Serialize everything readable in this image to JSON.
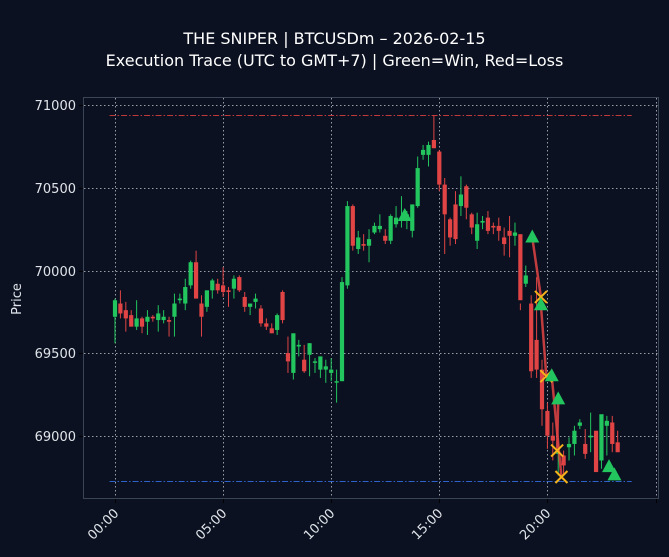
{
  "title": {
    "line1": "THE SNIPER | BTCUSDm – 2026-02-15",
    "line2": "Execution Trace (UTC to GMT+7) | Green=Win, Red=Loss"
  },
  "colors": {
    "background": "#0b1120",
    "up": "#22c55e",
    "down": "#e04444",
    "grid": "#c8ccd4",
    "frame": "#3a4656",
    "tp_line": "#c0393b",
    "sl_line": "#2f62c8",
    "exit_marker": "#f5b21a",
    "entry_marker": "#22c55e",
    "trade_line": "#e04444"
  },
  "chart_data": {
    "type": "candlestick",
    "title": "THE SNIPER | BTCUSDm – 2026-02-15 / Execution Trace (UTC to GMT+7) | Green=Win, Red=Loss",
    "xlabel": "",
    "ylabel": "Price",
    "x_ticks": [
      "00:00",
      "05:00",
      "10:00",
      "15:00",
      "20:00"
    ],
    "y_ticks": [
      69000,
      69500,
      70000,
      70500,
      71000
    ],
    "ylim": [
      68640,
      71050
    ],
    "xlim_hours": [
      -1.5,
      25.2
    ],
    "grid": true,
    "candle_interval_minutes": 15,
    "horizontal_lines": [
      {
        "name": "upper-level",
        "price": 70940,
        "style": "dashdot",
        "color": "#c0393b"
      },
      {
        "name": "lower-level",
        "price": 68725,
        "style": "dashdot",
        "color": "#2f62c8"
      }
    ],
    "candles": [
      [
        69720,
        69830,
        69560,
        69820
      ],
      [
        69800,
        69880,
        69710,
        69740
      ],
      [
        69760,
        69810,
        69630,
        69710
      ],
      [
        69730,
        69760,
        69670,
        69660
      ],
      [
        69660,
        69820,
        69640,
        69710
      ],
      [
        69710,
        69720,
        69620,
        69660
      ],
      [
        69690,
        69760,
        69610,
        69720
      ],
      [
        69720,
        69730,
        69690,
        69710
      ],
      [
        69700,
        69790,
        69630,
        69740
      ],
      [
        69700,
        69760,
        69680,
        69720
      ],
      [
        69700,
        69720,
        69600,
        69690
      ],
      [
        69720,
        69860,
        69600,
        69800
      ],
      [
        69820,
        69860,
        69800,
        69830
      ],
      [
        69800,
        69950,
        69760,
        69900
      ],
      [
        69910,
        70060,
        69890,
        70050
      ],
      [
        70050,
        70120,
        69920,
        69830
      ],
      [
        69800,
        69850,
        69600,
        69720
      ],
      [
        69780,
        69860,
        69750,
        69880
      ],
      [
        69880,
        69950,
        69830,
        69940
      ],
      [
        69920,
        69950,
        69860,
        69880
      ],
      [
        69910,
        70020,
        69840,
        69870
      ],
      [
        69880,
        69900,
        69780,
        69870
      ],
      [
        69890,
        69970,
        69830,
        69950
      ],
      [
        69960,
        69970,
        69870,
        69880
      ],
      [
        69840,
        69870,
        69750,
        69780
      ],
      [
        69780,
        69790,
        69730,
        69800
      ],
      [
        69810,
        69860,
        69770,
        69830
      ],
      [
        69770,
        69790,
        69660,
        69680
      ],
      [
        69680,
        69710,
        69640,
        69660
      ],
      [
        69650,
        69680,
        69620,
        69620
      ],
      [
        69640,
        69740,
        69610,
        69730
      ],
      [
        69870,
        69880,
        69680,
        69700
      ],
      [
        69500,
        69600,
        69380,
        69450
      ],
      [
        69380,
        69600,
        69340,
        69620
      ],
      [
        69540,
        69580,
        69480,
        69550
      ],
      [
        69460,
        69550,
        69380,
        69390
      ],
      [
        69490,
        69560,
        69360,
        69560
      ],
      [
        69450,
        69470,
        69380,
        69450
      ],
      [
        69400,
        69480,
        69350,
        69480
      ],
      [
        69400,
        69460,
        69320,
        69420
      ],
      [
        69380,
        69470,
        69330,
        69400
      ],
      [
        69330,
        69400,
        69200,
        69330
      ],
      [
        69330,
        69960,
        69330,
        69930
      ],
      [
        69910,
        70420,
        69890,
        70390
      ],
      [
        70390,
        70400,
        70120,
        70150
      ],
      [
        70130,
        70240,
        70100,
        70200
      ],
      [
        70160,
        70220,
        70120,
        70150
      ],
      [
        70150,
        70250,
        70050,
        70190
      ],
      [
        70230,
        70290,
        70220,
        70270
      ],
      [
        70250,
        70340,
        70230,
        70270
      ],
      [
        70210,
        70250,
        70160,
        70180
      ],
      [
        70180,
        70340,
        70160,
        70330
      ],
      [
        70280,
        70390,
        70260,
        70320
      ],
      [
        70320,
        70450,
        70260,
        70320
      ],
      [
        70320,
        70360,
        70250,
        70340
      ],
      [
        70240,
        70360,
        70200,
        70400
      ],
      [
        70390,
        70690,
        70380,
        70620
      ],
      [
        70700,
        70760,
        70670,
        70730
      ],
      [
        70700,
        70780,
        70630,
        70760
      ],
      [
        70790,
        70940,
        70750,
        70740
      ],
      [
        70720,
        70730,
        70480,
        70520
      ],
      [
        70520,
        70560,
        70100,
        70340
      ],
      [
        70310,
        70320,
        70150,
        70200
      ],
      [
        70400,
        70480,
        70160,
        70190
      ],
      [
        70390,
        70570,
        70330,
        70460
      ],
      [
        70510,
        70520,
        70310,
        70380
      ],
      [
        70340,
        70350,
        70220,
        70260
      ],
      [
        70180,
        70350,
        70130,
        70280
      ],
      [
        70290,
        70330,
        70250,
        70300
      ],
      [
        70320,
        70360,
        70220,
        70240
      ],
      [
        70270,
        70290,
        70220,
        70260
      ],
      [
        70270,
        70320,
        70180,
        70240
      ],
      [
        70200,
        70260,
        70090,
        70160
      ],
      [
        70240,
        70330,
        70080,
        70210
      ],
      [
        70210,
        70290,
        70150,
        70230
      ],
      [
        70220,
        69800,
        69760,
        69820
      ],
      [
        69920,
        70030,
        69900,
        69970
      ],
      [
        69800,
        69850,
        69350,
        69390
      ],
      [
        69580,
        69960,
        69350,
        69400
      ],
      [
        69400,
        69460,
        69060,
        69160
      ],
      [
        69150,
        69200,
        68920,
        69000
      ],
      [
        69000,
        69080,
        68850,
        68970
      ],
      [
        68890,
        68960,
        68760,
        68900
      ],
      [
        68880,
        68910,
        68760,
        68820
      ],
      [
        68930,
        68990,
        68850,
        68950
      ],
      [
        68950,
        69060,
        68880,
        69030
      ],
      [
        69060,
        69100,
        69040,
        69080
      ],
      [
        68950,
        69040,
        68860,
        68890
      ],
      [
        68990,
        69140,
        68900,
        69000
      ],
      [
        69030,
        69030,
        68780,
        68780
      ],
      [
        68850,
        69120,
        68800,
        69130
      ],
      [
        69060,
        69120,
        68880,
        69090
      ],
      [
        69080,
        69120,
        68900,
        68950
      ],
      [
        68960,
        69030,
        68920,
        68900
      ]
    ],
    "trades": [
      {
        "entry_time_h": 13.4,
        "entry_price": 70330,
        "result": "win",
        "exit_time_h": null,
        "exit_price": null
      },
      {
        "entry_time_h": 19.3,
        "entry_price": 70200,
        "result": "loss",
        "exit_time_h": 19.7,
        "exit_price": 69840
      },
      {
        "entry_time_h": 19.7,
        "entry_price": 69790,
        "result": "loss",
        "exit_time_h": 19.95,
        "exit_price": 69360
      },
      {
        "entry_time_h": 20.5,
        "entry_price": 69220,
        "result": "loss",
        "exit_time_h": 20.45,
        "exit_price": 68910
      },
      {
        "entry_time_h": 20.2,
        "entry_price": 69360,
        "result": "loss",
        "exit_time_h": 20.65,
        "exit_price": 68750
      },
      {
        "entry_time_h": 22.85,
        "entry_price": 68810,
        "result": "win",
        "exit_time_h": null,
        "exit_price": null
      },
      {
        "entry_time_h": 23.1,
        "entry_price": 68760,
        "result": "win",
        "exit_time_h": null,
        "exit_price": null
      }
    ]
  }
}
